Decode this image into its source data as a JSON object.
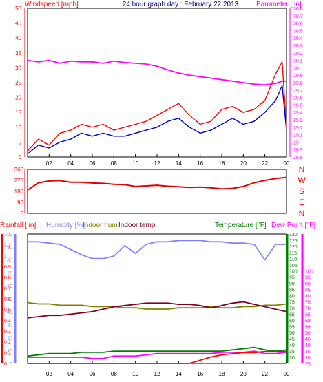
{
  "chart_data": [
    {
      "name": "windspeed-barometer-panel",
      "type": "line",
      "title": "24 hour graph day : February 22 2013",
      "left_axis_label": "Windspeed [mph]",
      "right_axis_label": "Barometer [.in]",
      "ylim_left": [
        0,
        50
      ],
      "ylim_right": [
        28.8,
        30.8
      ],
      "left_ticks": [
        "0",
        "5",
        "10",
        "15",
        "20",
        "25",
        "30",
        "35",
        "40",
        "45",
        "50"
      ],
      "right_ticks": [
        "28.8",
        "28.9",
        "29",
        "29.1",
        "29.2",
        "29.3",
        "29.4",
        "29.5",
        "29.6",
        "29.7",
        "29.8",
        "29.9",
        "30",
        "30.1",
        "30.2",
        "30.3",
        "30.4",
        "30.5",
        "30.6",
        "30.7",
        "30.8"
      ],
      "x_ticks": [
        "02",
        "04",
        "06",
        "08",
        "10",
        "12",
        "14",
        "16",
        "18",
        "20",
        "22",
        "00"
      ],
      "hours": [
        0,
        1,
        2,
        3,
        4,
        5,
        6,
        7,
        8,
        9,
        10,
        11,
        12,
        13,
        14,
        15,
        16,
        17,
        18,
        19,
        20,
        21,
        22,
        23,
        23.6,
        24
      ],
      "series": [
        {
          "color": "#ff0000",
          "axis": "left",
          "values": [
            2,
            6,
            4,
            8,
            9,
            11,
            10,
            11,
            9,
            10,
            11,
            12,
            14,
            16,
            18,
            14,
            11,
            12,
            16,
            17,
            15,
            16,
            19,
            28,
            32,
            10
          ]
        },
        {
          "color": "#0000c8",
          "axis": "left",
          "values": [
            1,
            4,
            3,
            5,
            6,
            8,
            7,
            8,
            7,
            7,
            8,
            9,
            10,
            12,
            13,
            10,
            8,
            9,
            11,
            13,
            11,
            12,
            15,
            19,
            24,
            9
          ]
        },
        {
          "color": "#ff00ff",
          "axis": "right",
          "values": [
            30.1,
            30.08,
            30.1,
            30.06,
            30.09,
            30.08,
            30.08,
            30.06,
            30.09,
            30.07,
            30.06,
            30.05,
            30.02,
            29.97,
            29.93,
            29.9,
            29.88,
            29.86,
            29.84,
            29.82,
            29.8,
            29.78,
            29.77,
            29.79,
            29.82,
            29.82
          ]
        }
      ]
    },
    {
      "name": "wind-direction-panel",
      "type": "line",
      "ylim": [
        0,
        360
      ],
      "left_ticks": [
        "0",
        "90",
        "180",
        "270",
        "360"
      ],
      "compass_labels": [
        "N",
        "W",
        "S",
        "E",
        "N"
      ],
      "x_ticks": [
        "02",
        "04",
        "06",
        "08",
        "10",
        "12",
        "14",
        "16",
        "18",
        "20",
        "22",
        "00"
      ],
      "hours": [
        0,
        1,
        2,
        3,
        4,
        5,
        6,
        7,
        8,
        9,
        10,
        11,
        12,
        13,
        14,
        15,
        16,
        17,
        18,
        19,
        20,
        21,
        22,
        23,
        24
      ],
      "series": [
        {
          "color": "#e00000",
          "values": [
            190,
            250,
            265,
            268,
            255,
            255,
            248,
            245,
            238,
            235,
            220,
            225,
            230,
            222,
            218,
            212,
            215,
            210,
            200,
            205,
            220,
            250,
            270,
            285,
            295
          ]
        }
      ]
    },
    {
      "name": "rain-humidity-temperature-panel",
      "type": "line",
      "labels": {
        "rainfall": "Rainfall [.in]",
        "humidity": "Humidity [%]",
        "indoor_hum": "Indoor hum",
        "indoor_temp": "Indoor temp",
        "temperature": "Temperature [°F]",
        "dew_point": "Dew Point [°F]"
      },
      "ylim_rain": [
        0,
        1.2
      ],
      "rain_ticks": [
        "0",
        "0.1",
        "0.2",
        "0.3",
        "0.4",
        "0.5",
        "0.6",
        "0.7",
        "0.8",
        "0.9",
        "1",
        "1.1"
      ],
      "ylim_humidity": [
        0,
        100
      ],
      "humidity_ticks": [
        "0",
        "10",
        "20",
        "30",
        "40",
        "50",
        "60",
        "70",
        "80",
        "90",
        "100"
      ],
      "ylim_temp": [
        25,
        130
      ],
      "temp_ticks_a": [
        "30",
        "35",
        "40",
        "45",
        "50",
        "55",
        "60",
        "65",
        "70",
        "75",
        "80",
        "85",
        "90",
        "95",
        "100",
        "105",
        "110",
        "115",
        "120",
        "125",
        "130"
      ],
      "temp_ticks_b": [
        "25",
        "30",
        "35",
        "40",
        "45",
        "50",
        "55",
        "60",
        "65",
        "70",
        "75",
        "80",
        "85",
        "90",
        "95",
        "100"
      ],
      "x_ticks": [
        "02",
        "04",
        "06",
        "08",
        "10",
        "12",
        "14",
        "16",
        "18",
        "20",
        "22",
        "00"
      ],
      "hours": [
        0,
        1,
        2,
        3,
        4,
        5,
        6,
        7,
        8,
        9,
        10,
        11,
        12,
        13,
        14,
        15,
        16,
        17,
        18,
        19,
        20,
        21,
        22,
        23,
        24
      ],
      "series": [
        {
          "key": "humidity",
          "color": "#8080ff",
          "axis": "humidity",
          "values": [
            94,
            94,
            93,
            92,
            88,
            84,
            81,
            81,
            83,
            91,
            85,
            92,
            94,
            94,
            95,
            95,
            95,
            94,
            94,
            93,
            93,
            92,
            80,
            92,
            92
          ]
        },
        {
          "key": "indoor_hum",
          "color": "#808000",
          "axis": "humidity",
          "values": [
            47,
            46,
            46,
            45,
            45,
            45,
            44,
            44,
            44,
            43,
            43,
            42,
            42,
            42,
            43,
            43,
            43,
            44,
            43,
            43,
            44,
            44,
            45,
            45,
            46
          ]
        },
        {
          "key": "indoor_temp",
          "color": "#800020",
          "axis": "temp",
          "values": [
            62,
            63,
            64,
            64,
            65,
            66,
            67,
            69,
            71,
            72,
            73,
            74,
            74,
            74,
            73,
            73,
            72,
            70,
            72,
            74,
            75,
            73,
            71,
            69,
            67
          ]
        },
        {
          "key": "temperature",
          "color": "#008000",
          "axis": "temp",
          "values": [
            31,
            32,
            33,
            33,
            33,
            34,
            34,
            34,
            35,
            35,
            35,
            35,
            35,
            35,
            35,
            35,
            35,
            35,
            35,
            36,
            37,
            38,
            36,
            35,
            36
          ]
        },
        {
          "key": "dew_point",
          "color": "#ff00ff",
          "axis": "temp",
          "values": [
            30,
            30,
            30,
            30,
            30,
            30,
            29,
            29,
            31,
            31,
            31,
            32,
            33,
            33,
            33,
            33,
            33,
            33,
            34,
            34,
            34,
            35,
            33,
            33,
            34
          ]
        },
        {
          "key": "rainfall",
          "color": "#ff0000",
          "axis": "rain",
          "values": [
            0,
            0,
            0,
            0,
            0,
            0,
            0,
            0,
            0,
            0,
            0,
            0,
            0,
            0,
            0,
            0,
            0.03,
            0.06,
            0.08,
            0.09,
            0.1,
            0.1,
            0.11,
            0.11,
            0.11
          ]
        }
      ]
    }
  ]
}
